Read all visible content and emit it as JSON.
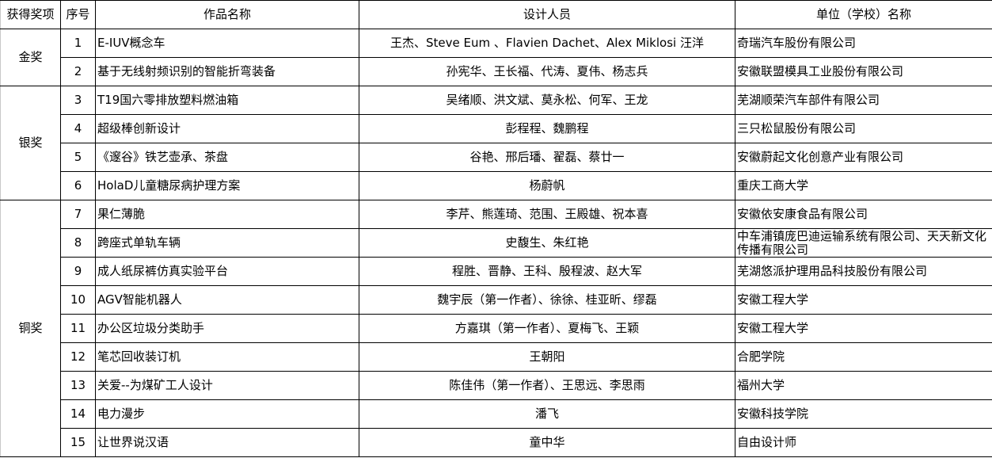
{
  "headers": [
    "获得奖项",
    "序号",
    "作品名称",
    "设计人员",
    "单位（学校）名称"
  ],
  "groups": [
    {
      "award": "金奖",
      "rows": [
        {
          "no": "1",
          "work": "E-IUV概念车",
          "designers": "王杰、Steve Eum  、Flavien Dachet、Alex Miklosi  汪洋",
          "unit": "奇瑞汽车股份有限公司"
        },
        {
          "no": "2",
          "work": "基于无线射频识别的智能折弯装备",
          "designers": "孙宪华、王长福、代涛、夏伟、杨志兵",
          "unit": "安徽联盟模具工业股份有限公司"
        }
      ]
    },
    {
      "award": "银奖",
      "rows": [
        {
          "no": "3",
          "work": "T19国六零排放塑料燃油箱",
          "designers": "吴绪顺、洪文斌、莫永松、何军、王龙",
          "unit": "芜湖顺荣汽车部件有限公司"
        },
        {
          "no": "4",
          "work": "超级棒创新设计",
          "designers": "彭程程、魏鹏程",
          "unit": "三只松鼠股份有限公司"
        },
        {
          "no": "5",
          "work": "《邃谷》铁艺壶承、茶盘",
          "designers": "谷艳、邢后璠、翟磊、蔡廿一",
          "unit": "安徽蔚起文化创意产业有限公司"
        },
        {
          "no": "6",
          "work": "HolaD儿童糖尿病护理方案",
          "designers": "杨蔚帆",
          "unit": "重庆工商大学"
        }
      ]
    },
    {
      "award": "铜奖",
      "rows": [
        {
          "no": "7",
          "work": "果仁薄脆",
          "designers": "李芹、熊莲琦、范围、王殿雄、祝本喜",
          "unit": "安徽依安康食品有限公司"
        },
        {
          "no": "8",
          "work": "跨座式单轨车辆",
          "designers": "史馥生、朱红艳",
          "unit": "中车浦镇庞巴迪运输系统有限公司、天天新文化传播有限公司"
        },
        {
          "no": "9",
          "work": "成人纸尿裤仿真实验平台",
          "designers": "程胜、晋静、王科、殷程波、赵大军",
          "unit": "芜湖悠派护理用品科技股份有限公司"
        },
        {
          "no": "10",
          "work": "AGV智能机器人",
          "designers": "魏宇辰（第一作者）、徐徐、桂亚昕、缪磊",
          "unit": "安徽工程大学"
        },
        {
          "no": "11",
          "work": "办公区垃圾分类助手",
          "designers": "方嘉琪（第一作者）、夏梅飞、王颖",
          "unit": "安徽工程大学"
        },
        {
          "no": "12",
          "work": "笔芯回收装订机",
          "designers": "王朝阳",
          "unit": "合肥学院"
        },
        {
          "no": "13",
          "work": "关爱--为煤矿工人设计",
          "designers": "陈佳伟（第一作者）、王思远、李思雨",
          "unit": "福州大学"
        },
        {
          "no": "14",
          "work": "电力漫步",
          "designers": "潘飞",
          "unit": "安徽科技学院"
        },
        {
          "no": "15",
          "work": "让世界说汉语",
          "designers": "童中华",
          "unit": "自由设计师"
        }
      ]
    }
  ]
}
